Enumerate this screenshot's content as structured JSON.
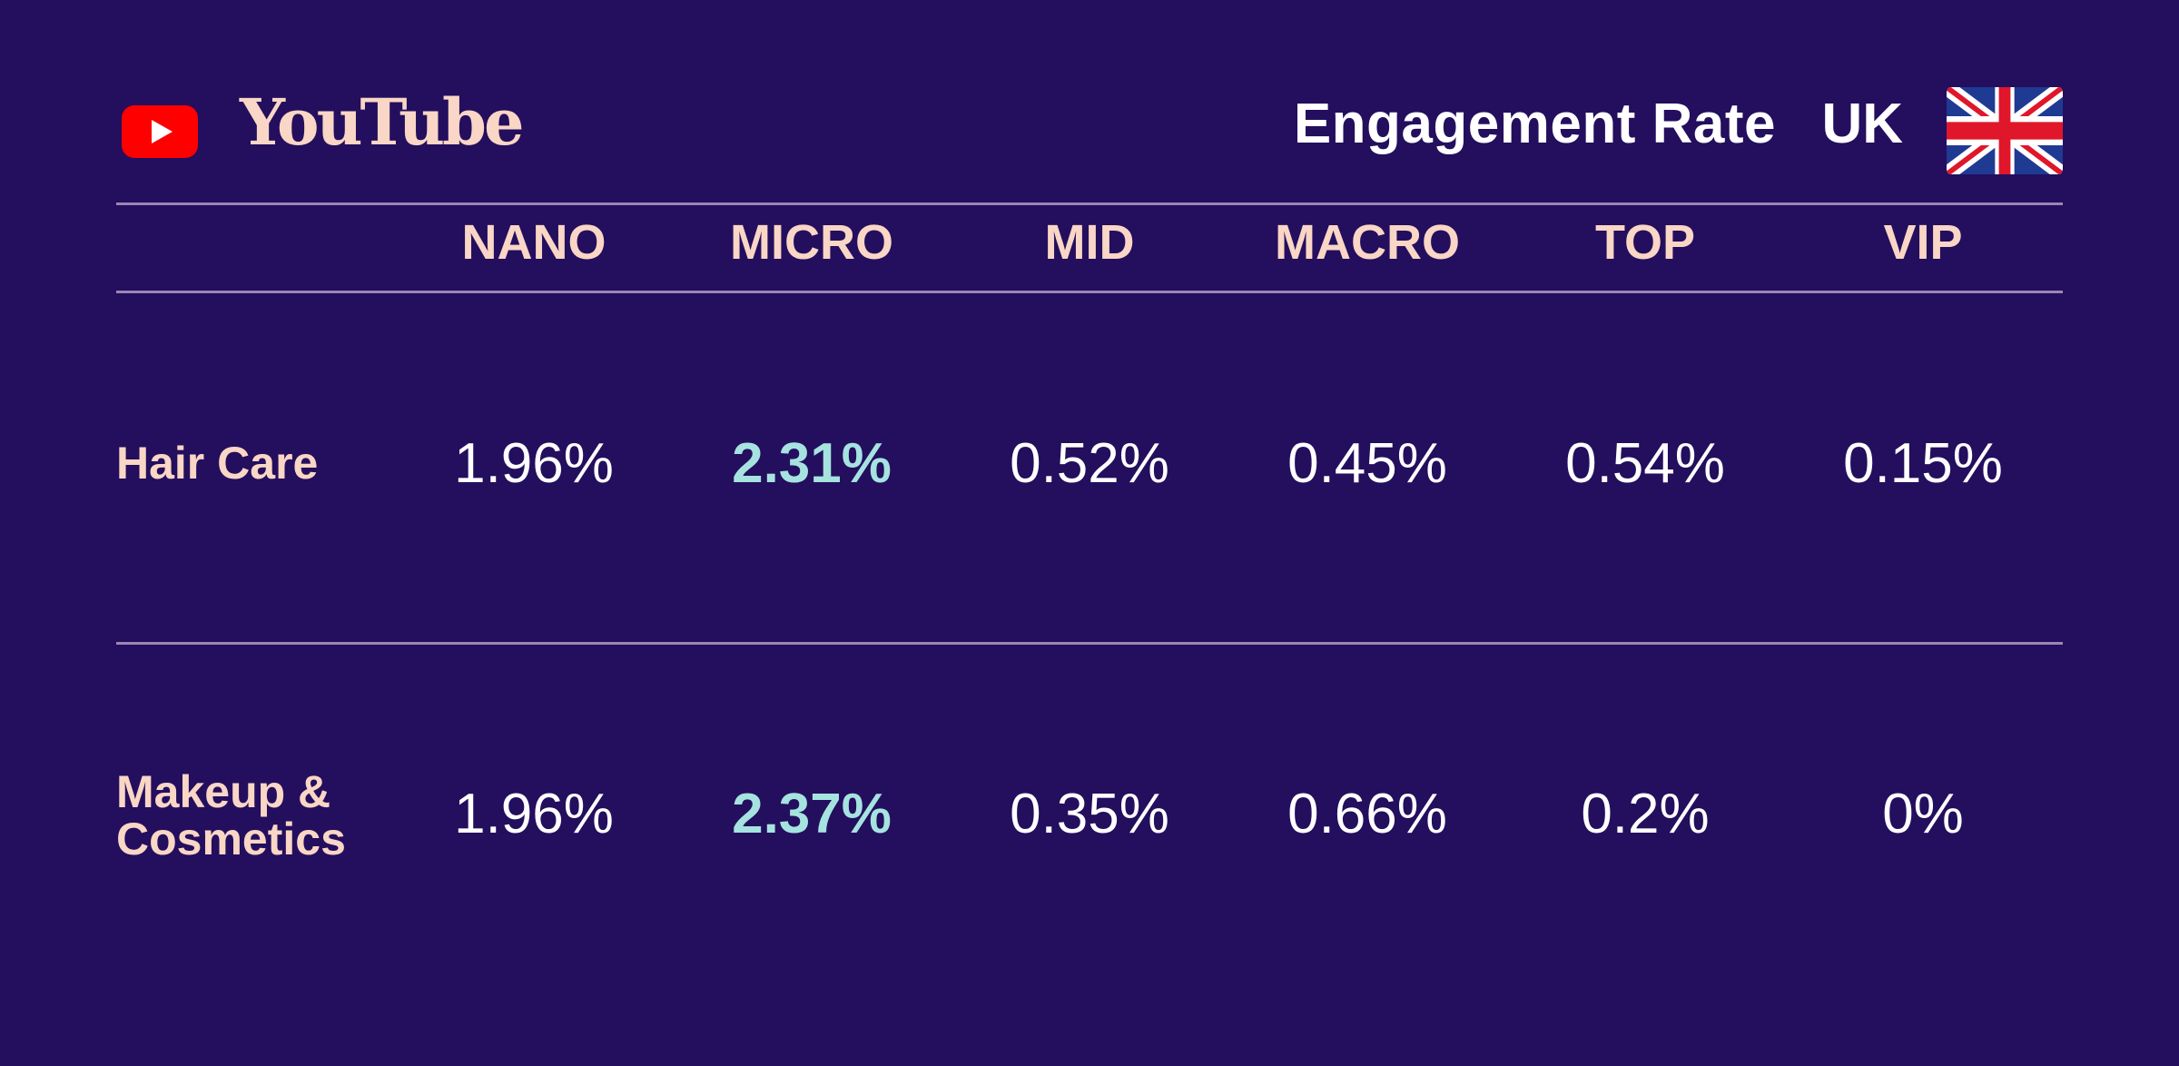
{
  "header": {
    "brand": "YouTube",
    "metric": "Engagement Rate",
    "country": "UK",
    "icons": {
      "logo": "youtube-play-icon",
      "flag": "uk-flag-icon"
    }
  },
  "colors": {
    "background": "#240e5e",
    "label": "#f9d6c5",
    "value": "#ffffff",
    "highlight": "#a6e3e0",
    "rule": "#9c86b3",
    "youtube_red": "#ff0000"
  },
  "chart_data": {
    "type": "table",
    "title": "Engagement Rate",
    "columns": [
      "NANO",
      "MICRO",
      "MID",
      "MACRO",
      "TOP",
      "VIP"
    ],
    "rows": [
      {
        "label": "Hair Care",
        "values": [
          "1.96%",
          "2.31%",
          "0.52%",
          "0.45%",
          "0.54%",
          "0.15%"
        ],
        "highlight": "MICRO"
      },
      {
        "label": "Makeup & Cosmetics",
        "label_lines": [
          "Makeup &",
          "Cosmetics"
        ],
        "values": [
          "1.96%",
          "2.37%",
          "0.35%",
          "0.66%",
          "0.2%",
          "0%"
        ],
        "highlight": "MICRO"
      }
    ]
  }
}
